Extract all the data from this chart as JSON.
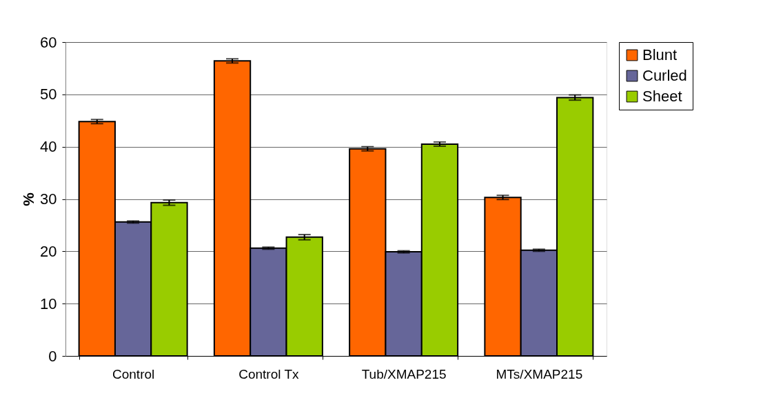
{
  "chart_data": {
    "type": "bar",
    "ylabel": "%",
    "categories": [
      "Control",
      "Control Tx",
      "Tub/XMAP215",
      "MTs/XMAP215"
    ],
    "series": [
      {
        "name": "Blunt",
        "color": "#ff6600",
        "values": [
          44.8,
          56.4,
          39.6,
          30.3
        ],
        "errors": [
          0.4,
          0.4,
          0.4,
          0.4
        ]
      },
      {
        "name": "Curled",
        "color": "#666699",
        "values": [
          25.6,
          20.6,
          19.9,
          20.2
        ],
        "errors": [
          0.2,
          0.2,
          0.2,
          0.2
        ]
      },
      {
        "name": "Sheet",
        "color": "#99cc00",
        "values": [
          29.3,
          22.7,
          40.5,
          49.4
        ],
        "errors": [
          0.5,
          0.5,
          0.4,
          0.5
        ]
      }
    ],
    "ylim": [
      0,
      60
    ],
    "yticks": [
      0,
      10,
      20,
      30,
      40,
      50,
      60
    ],
    "grid": "y",
    "legend": "right"
  }
}
